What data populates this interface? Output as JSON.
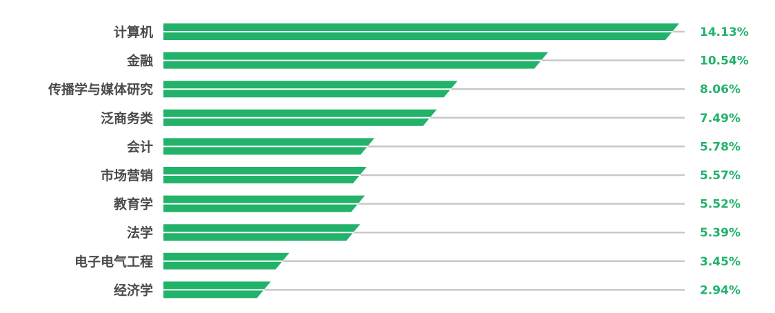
{
  "colors": {
    "bar": "#22b26a",
    "track": "#c8c8c8",
    "category_text": "#4a4a4a",
    "value_text": "#22b26a"
  },
  "chart_data": {
    "type": "bar",
    "orientation": "horizontal",
    "categories": [
      "计算机",
      "金融",
      "传播学与媒体研究",
      "泛商务类",
      "会计",
      "市场营销",
      "教育学",
      "法学",
      "电子电气工程",
      "经济学"
    ],
    "values": [
      14.13,
      10.54,
      8.06,
      7.49,
      5.78,
      5.57,
      5.52,
      5.39,
      3.45,
      2.94
    ],
    "value_labels": [
      "14.13%",
      "10.54%",
      "8.06%",
      "7.49%",
      "5.78%",
      "5.57%",
      "5.52%",
      "5.39%",
      "3.45%",
      "2.94%"
    ],
    "xlim": [
      0,
      14.13
    ],
    "grid": false,
    "legend": "none"
  }
}
